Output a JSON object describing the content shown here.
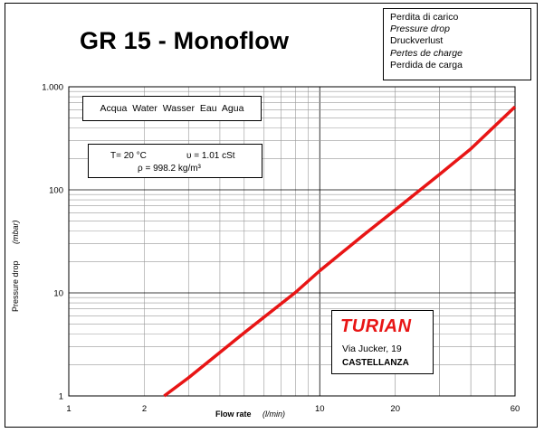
{
  "title": "GR 15 - Monoflow",
  "legend_box": [
    "Perdita di carico",
    "Pressure drop",
    "Druckverlust",
    "Pertes de charge",
    "Perdida de carga"
  ],
  "fluid_label": "Acqua  Water  Wasser  Eau  Agua",
  "properties": {
    "temperature": "T= 20 °C",
    "viscosity": "υ = 1.01  cSt",
    "density": "ρ = 998.2  kg/m³"
  },
  "brand": {
    "name": "TURIAN",
    "street": "Via Jucker, 19",
    "city": "CASTELLANZA"
  },
  "colors": {
    "curve": "#e81515",
    "grid": "#999999",
    "brand": "#e81515"
  },
  "chart_data": {
    "type": "line",
    "xlabel": "Flow rate",
    "xunit": "(l/min)",
    "ylabel": "Pressure drop",
    "yunit": "(mbar)",
    "x_scale": "log",
    "y_scale": "log",
    "xlim": [
      1,
      60
    ],
    "ylim": [
      1,
      1000
    ],
    "x_ticks": [
      1,
      2,
      10,
      20,
      60
    ],
    "x_tick_labels": [
      "1",
      "2",
      "10",
      "20",
      "60"
    ],
    "y_ticks": [
      1,
      10,
      100,
      1000
    ],
    "y_tick_labels": [
      "1",
      "10",
      "100",
      "1.000"
    ],
    "grid": true,
    "series": [
      {
        "x": [
          2.4,
          3,
          5,
          8,
          10,
          15,
          20,
          30,
          40,
          60
        ],
        "y": [
          1,
          1.5,
          4.1,
          10.1,
          16.4,
          36.7,
          64,
          141,
          250,
          640
        ]
      }
    ]
  }
}
